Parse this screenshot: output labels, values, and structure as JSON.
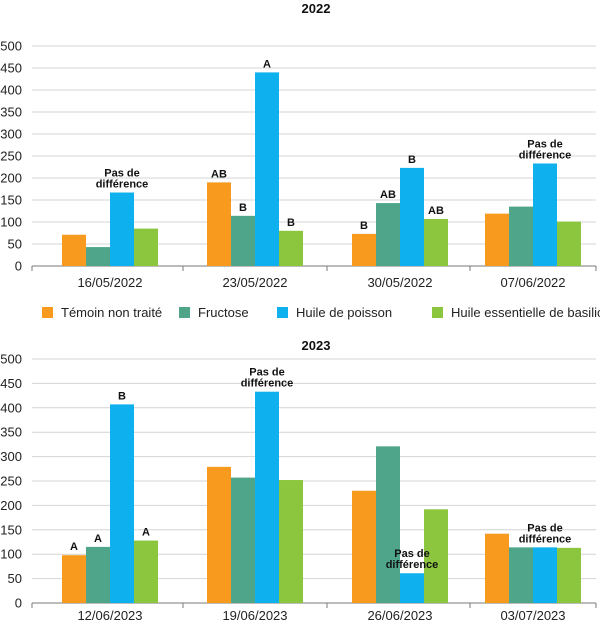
{
  "chart_data": [
    {
      "type": "bar",
      "title": "2022",
      "xlabel": "",
      "ylabel": "",
      "ylim": [
        0,
        500
      ],
      "yticks": [
        0,
        50,
        100,
        150,
        200,
        250,
        300,
        350,
        400,
        450,
        500
      ],
      "categories": [
        "16/05/2022",
        "23/05/2022",
        "30/05/2022",
        "07/06/2022"
      ],
      "series": [
        {
          "name": "Témoin non traité",
          "color": "#F79A1E",
          "values": [
            71,
            190,
            73,
            119
          ]
        },
        {
          "name": "Fructose",
          "color": "#4EA58A",
          "values": [
            43,
            114,
            143,
            135
          ]
        },
        {
          "name": "Huile de poisson",
          "color": "#0EB0EE",
          "values": [
            167,
            440,
            223,
            233
          ]
        },
        {
          "name": "Huile essentielle de basilic",
          "color": "#8CC63F",
          "values": [
            85,
            80,
            107,
            101
          ]
        }
      ],
      "annotations": [
        {
          "category": 0,
          "group_label": [
            "Pas de",
            "différence"
          ]
        },
        {
          "category": 1,
          "bar_labels": [
            "AB",
            "B",
            "A",
            "B"
          ]
        },
        {
          "category": 2,
          "bar_labels": [
            "B",
            "AB",
            "B",
            "AB"
          ]
        },
        {
          "category": 3,
          "group_label": [
            "Pas de",
            "différence"
          ]
        }
      ]
    },
    {
      "type": "bar",
      "title": "2023",
      "xlabel": "",
      "ylabel": "",
      "ylim": [
        0,
        500
      ],
      "yticks": [
        0,
        50,
        100,
        150,
        200,
        250,
        300,
        350,
        400,
        450,
        500
      ],
      "categories": [
        "12/06/2023",
        "19/06/2023",
        "26/06/2023",
        "03/07/2023"
      ],
      "series": [
        {
          "name": "Témoin non traité",
          "color": "#F79A1E",
          "values": [
            98,
            279,
            230,
            142
          ]
        },
        {
          "name": "Fructose",
          "color": "#4EA58A",
          "values": [
            115,
            257,
            321,
            114
          ]
        },
        {
          "name": "Huile de poisson",
          "color": "#0EB0EE",
          "values": [
            407,
            433,
            61,
            114
          ]
        },
        {
          "name": "Huile essentielle de basilic",
          "color": "#8CC63F",
          "values": [
            128,
            252,
            192,
            113
          ]
        }
      ],
      "annotations": [
        {
          "category": 0,
          "bar_labels": [
            "A",
            "A",
            "B",
            "A"
          ]
        },
        {
          "category": 1,
          "group_label": [
            "Pas de",
            "différence"
          ]
        },
        {
          "category": 2,
          "group_label": [
            "Pas de",
            "différence"
          ]
        },
        {
          "category": 3,
          "group_label": [
            "Pas de",
            "différence"
          ]
        }
      ]
    }
  ],
  "legend": {
    "placement": "between-charts",
    "items": [
      {
        "label": "Témoin non traité",
        "color": "#F79A1E"
      },
      {
        "label": "Fructose",
        "color": "#4EA58A"
      },
      {
        "label": "Huile de poisson",
        "color": "#0EB0EE"
      },
      {
        "label": "Huile essentielle de basilic",
        "color": "#8CC63F"
      }
    ]
  }
}
